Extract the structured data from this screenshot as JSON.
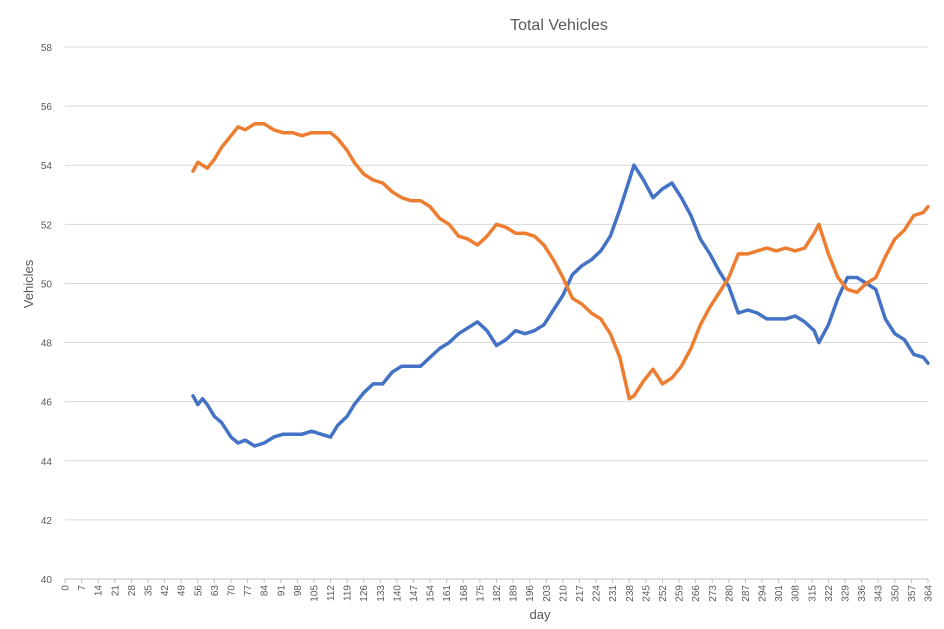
{
  "chart_data": {
    "type": "line",
    "title": "Total Vehicles",
    "xlabel": "day",
    "ylabel": "Vehicles",
    "ylim": [
      40,
      58
    ],
    "yticks": [
      40,
      42,
      44,
      46,
      48,
      50,
      52,
      54,
      56,
      58
    ],
    "xlim": [
      0,
      364
    ],
    "xticks": [
      0,
      7,
      14,
      21,
      28,
      35,
      42,
      49,
      56,
      63,
      70,
      77,
      84,
      91,
      98,
      105,
      112,
      119,
      126,
      133,
      140,
      147,
      154,
      161,
      168,
      175,
      182,
      189,
      196,
      203,
      210,
      217,
      224,
      231,
      238,
      245,
      252,
      259,
      266,
      273,
      280,
      287,
      294,
      301,
      308,
      315,
      322,
      329,
      336,
      343,
      350,
      357,
      364
    ],
    "grid": true,
    "legend": "none",
    "colors": [
      "#4472C4",
      "#ED7D31"
    ],
    "series": [
      {
        "color": "#4472C4",
        "x": [
          54,
          56,
          58,
          60,
          63,
          66,
          70,
          73,
          76,
          80,
          84,
          88,
          92,
          96,
          100,
          104,
          108,
          112,
          115,
          119,
          122,
          126,
          130,
          134,
          138,
          142,
          146,
          150,
          154,
          158,
          162,
          166,
          170,
          174,
          178,
          182,
          186,
          190,
          194,
          198,
          202,
          206,
          210,
          214,
          218,
          222,
          226,
          230,
          234,
          238,
          240,
          244,
          248,
          252,
          256,
          260,
          264,
          268,
          272,
          276,
          280,
          284,
          288,
          292,
          296,
          300,
          304,
          308,
          312,
          316,
          318,
          322,
          326,
          330,
          334,
          338,
          342,
          346,
          350,
          354,
          358,
          362,
          364
        ],
        "y": [
          46.2,
          45.9,
          46.1,
          45.9,
          45.5,
          45.3,
          44.8,
          44.6,
          44.7,
          44.5,
          44.6,
          44.8,
          44.9,
          44.9,
          44.9,
          45.0,
          44.9,
          44.8,
          45.2,
          45.5,
          45.9,
          46.3,
          46.6,
          46.6,
          47.0,
          47.2,
          47.2,
          47.2,
          47.5,
          47.8,
          48.0,
          48.3,
          48.5,
          48.7,
          48.4,
          47.9,
          48.1,
          48.4,
          48.3,
          48.4,
          48.6,
          49.1,
          49.6,
          50.3,
          50.6,
          50.8,
          51.1,
          51.6,
          52.5,
          53.5,
          54.0,
          53.5,
          52.9,
          53.2,
          53.4,
          52.9,
          52.3,
          51.5,
          51.0,
          50.4,
          49.9,
          49.0,
          49.1,
          49.0,
          48.8,
          48.8,
          48.8,
          48.9,
          48.7,
          48.4,
          48.0,
          48.6,
          49.5,
          50.2,
          50.2,
          50.0,
          49.8,
          48.8,
          48.3,
          48.1,
          47.6,
          47.5,
          47.3
        ]
      },
      {
        "color": "#ED7D31",
        "x": [
          54,
          56,
          58,
          60,
          63,
          66,
          70,
          73,
          76,
          80,
          84,
          88,
          92,
          96,
          100,
          104,
          108,
          112,
          115,
          119,
          122,
          126,
          130,
          134,
          138,
          142,
          146,
          150,
          154,
          158,
          162,
          166,
          170,
          174,
          178,
          182,
          186,
          190,
          194,
          198,
          202,
          206,
          210,
          214,
          218,
          222,
          226,
          230,
          234,
          238,
          240,
          244,
          248,
          252,
          256,
          260,
          264,
          268,
          272,
          276,
          280,
          284,
          288,
          292,
          296,
          300,
          304,
          308,
          312,
          316,
          318,
          322,
          326,
          330,
          334,
          338,
          342,
          346,
          350,
          354,
          358,
          362,
          364
        ],
        "y": [
          53.8,
          54.1,
          54.0,
          53.9,
          54.2,
          54.6,
          55.0,
          55.3,
          55.2,
          55.4,
          55.4,
          55.2,
          55.1,
          55.1,
          55.0,
          55.1,
          55.1,
          55.1,
          54.9,
          54.5,
          54.1,
          53.7,
          53.5,
          53.4,
          53.1,
          52.9,
          52.8,
          52.8,
          52.6,
          52.2,
          52.0,
          51.6,
          51.5,
          51.3,
          51.6,
          52.0,
          51.9,
          51.7,
          51.7,
          51.6,
          51.3,
          50.8,
          50.2,
          49.5,
          49.3,
          49.0,
          48.8,
          48.3,
          47.5,
          46.1,
          46.2,
          46.7,
          47.1,
          46.6,
          46.8,
          47.2,
          47.8,
          48.6,
          49.2,
          49.7,
          50.2,
          51.0,
          51.0,
          51.1,
          51.2,
          51.1,
          51.2,
          51.1,
          51.2,
          51.7,
          52.0,
          51.0,
          50.2,
          49.8,
          49.7,
          50.0,
          50.2,
          50.9,
          51.5,
          51.8,
          52.3,
          52.4,
          52.6
        ]
      }
    ]
  }
}
